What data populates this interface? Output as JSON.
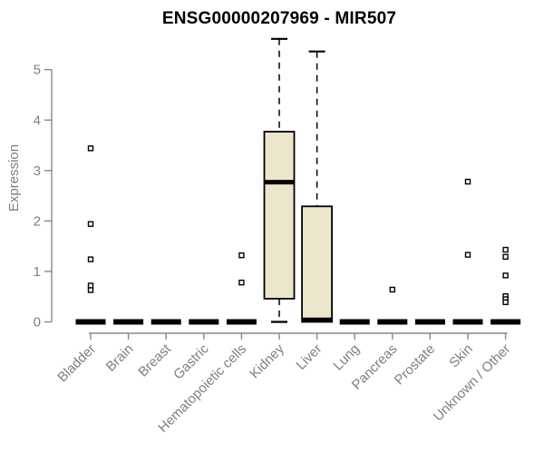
{
  "colors": {
    "background": "#ffffff",
    "box_fill": "#ece7cc",
    "box_stroke": "#000000",
    "median": "#000000",
    "whisker": "#000000",
    "outlier_fill": "#ffffff",
    "outlier_stroke": "#000000",
    "axis_line": "#888888",
    "tick_text": "#7f7f7f",
    "title_text": "#000000"
  },
  "chart_data": {
    "type": "boxplot",
    "title": "ENSG00000207969 - MIR507",
    "xlabel": "",
    "ylabel": "Expression",
    "ylim": [
      0,
      5
    ],
    "yticks": [
      0,
      1,
      2,
      3,
      4,
      5
    ],
    "grid": false,
    "legend": "none",
    "categories": [
      "Bladder",
      "Brain",
      "Breast",
      "Gastric",
      "Hematopoietic cells",
      "Kidney",
      "Liver",
      "Lung",
      "Pancreas",
      "Prostate",
      "Skin",
      "Unknown / Other"
    ],
    "boxes": [
      {
        "category": "Bladder",
        "q1": 0,
        "median": 0,
        "q3": 0,
        "whisker_low": 0,
        "whisker_high": 0,
        "outliers": [
          3.44,
          1.94,
          1.24,
          0.72,
          0.63
        ]
      },
      {
        "category": "Brain",
        "q1": 0,
        "median": 0,
        "q3": 0,
        "whisker_low": 0,
        "whisker_high": 0,
        "outliers": []
      },
      {
        "category": "Breast",
        "q1": 0,
        "median": 0,
        "q3": 0,
        "whisker_low": 0,
        "whisker_high": 0,
        "outliers": []
      },
      {
        "category": "Gastric",
        "q1": 0,
        "median": 0,
        "q3": 0,
        "whisker_low": 0,
        "whisker_high": 0,
        "outliers": []
      },
      {
        "category": "Hematopoietic cells",
        "q1": 0,
        "median": 0,
        "q3": 0,
        "whisker_low": 0,
        "whisker_high": 0,
        "outliers": [
          1.32,
          0.78
        ]
      },
      {
        "category": "Kidney",
        "q1": 0.46,
        "median": 2.77,
        "q3": 3.77,
        "whisker_low": 0,
        "whisker_high": 5.61,
        "outliers": []
      },
      {
        "category": "Liver",
        "q1": 0,
        "median": 0.04,
        "q3": 2.29,
        "whisker_low": 0,
        "whisker_high": 5.36,
        "outliers": []
      },
      {
        "category": "Lung",
        "q1": 0,
        "median": 0,
        "q3": 0,
        "whisker_low": 0,
        "whisker_high": 0,
        "outliers": []
      },
      {
        "category": "Pancreas",
        "q1": 0,
        "median": 0,
        "q3": 0,
        "whisker_low": 0,
        "whisker_high": 0,
        "outliers": [
          0.64
        ]
      },
      {
        "category": "Prostate",
        "q1": 0,
        "median": 0,
        "q3": 0,
        "whisker_low": 0,
        "whisker_high": 0,
        "outliers": []
      },
      {
        "category": "Skin",
        "q1": 0,
        "median": 0,
        "q3": 0,
        "whisker_low": 0,
        "whisker_high": 0,
        "outliers": [
          2.78,
          1.33
        ]
      },
      {
        "category": "Unknown / Other",
        "q1": 0,
        "median": 0,
        "q3": 0,
        "whisker_low": 0,
        "whisker_high": 0,
        "outliers": [
          1.43,
          1.29,
          0.92,
          0.51,
          0.45,
          0.39
        ]
      }
    ]
  }
}
